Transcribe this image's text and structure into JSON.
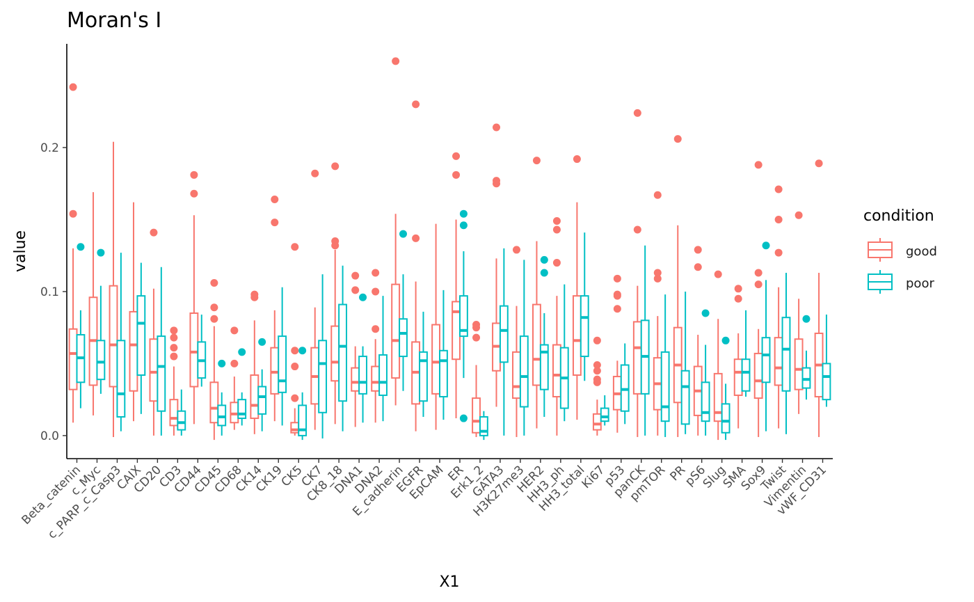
{
  "chart_data": {
    "type": "boxplot",
    "title": "Moran's I",
    "xlabel": "X1",
    "ylabel": "value",
    "ylim": [
      -0.016,
      0.272
    ],
    "yticks": [
      0.0,
      0.1,
      0.2
    ],
    "ytick_labels": [
      "0.0",
      "0.1",
      "0.2"
    ],
    "grid": false,
    "legend": {
      "title": "condition",
      "position": "right",
      "entries": [
        {
          "name": "good",
          "color": "#F8766D"
        },
        {
          "name": "poor",
          "color": "#00BFC4"
        }
      ]
    },
    "categories": [
      "Beta_catenin",
      "c_Myc",
      "c_PARP_c_Casp3",
      "CAIX",
      "CD20",
      "CD3",
      "CD44",
      "CD45",
      "CD68",
      "CK14",
      "CK19",
      "CK5",
      "CK7",
      "CK8_18",
      "DNA1",
      "DNA2",
      "E_cadherin",
      "EGFR",
      "EpCAM",
      "ER",
      "Erk1_2",
      "GATA3",
      "H3K27me3",
      "HER2",
      "HH3_ph",
      "HH3_total",
      "Ki67",
      "p53",
      "panCK",
      "pmTOR",
      "PR",
      "pS6",
      "Slug",
      "SMA",
      "Sox9",
      "Twist",
      "Vimentin",
      "vWF_CD31"
    ],
    "series": [
      {
        "name": "good",
        "boxes": [
          {
            "min": 0.009,
            "q1": 0.032,
            "median": 0.057,
            "q3": 0.074,
            "max": 0.13,
            "outliers": [
              0.242,
              0.154
            ]
          },
          {
            "min": 0.014,
            "q1": 0.035,
            "median": 0.066,
            "q3": 0.096,
            "max": 0.169,
            "outliers": []
          },
          {
            "min": -0.001,
            "q1": 0.034,
            "median": 0.063,
            "q3": 0.104,
            "max": 0.204,
            "outliers": []
          },
          {
            "min": 0.01,
            "q1": 0.031,
            "median": 0.063,
            "q3": 0.086,
            "max": 0.162,
            "outliers": []
          },
          {
            "min": 0.0,
            "q1": 0.024,
            "median": 0.044,
            "q3": 0.067,
            "max": 0.102,
            "outliers": [
              0.141
            ]
          },
          {
            "min": 0.0,
            "q1": 0.007,
            "median": 0.012,
            "q3": 0.025,
            "max": 0.048,
            "outliers": [
              0.073,
              0.068,
              0.061,
              0.055
            ]
          },
          {
            "min": 0.008,
            "q1": 0.034,
            "median": 0.058,
            "q3": 0.085,
            "max": 0.153,
            "outliers": [
              0.181,
              0.168
            ]
          },
          {
            "min": -0.003,
            "q1": 0.009,
            "median": 0.019,
            "q3": 0.037,
            "max": 0.076,
            "outliers": [
              0.106,
              0.089,
              0.081
            ]
          },
          {
            "min": 0.004,
            "q1": 0.009,
            "median": 0.015,
            "q3": 0.023,
            "max": 0.041,
            "outliers": [
              0.073,
              0.05
            ]
          },
          {
            "min": 0.001,
            "q1": 0.012,
            "median": 0.021,
            "q3": 0.042,
            "max": 0.08,
            "outliers": [
              0.098,
              0.096
            ]
          },
          {
            "min": 0.01,
            "q1": 0.029,
            "median": 0.044,
            "q3": 0.061,
            "max": 0.087,
            "outliers": [
              0.164,
              0.148
            ]
          },
          {
            "min": 0.0,
            "q1": 0.002,
            "median": 0.004,
            "q3": 0.009,
            "max": 0.019,
            "outliers": [
              0.131,
              0.059,
              0.048,
              0.026
            ]
          },
          {
            "min": 0.004,
            "q1": 0.022,
            "median": 0.041,
            "q3": 0.061,
            "max": 0.089,
            "outliers": [
              0.182
            ]
          },
          {
            "min": 0.008,
            "q1": 0.038,
            "median": 0.051,
            "q3": 0.076,
            "max": 0.129,
            "outliers": [
              0.187,
              0.135,
              0.132
            ]
          },
          {
            "min": 0.006,
            "q1": 0.031,
            "median": 0.037,
            "q3": 0.047,
            "max": 0.062,
            "outliers": [
              0.111,
              0.101
            ]
          },
          {
            "min": 0.009,
            "q1": 0.031,
            "median": 0.037,
            "q3": 0.048,
            "max": 0.067,
            "outliers": [
              0.113,
              0.1,
              0.074
            ]
          },
          {
            "min": 0.021,
            "q1": 0.04,
            "median": 0.066,
            "q3": 0.105,
            "max": 0.154,
            "outliers": [
              0.26
            ]
          },
          {
            "min": 0.003,
            "q1": 0.022,
            "median": 0.044,
            "q3": 0.065,
            "max": 0.107,
            "outliers": [
              0.23,
              0.137
            ]
          },
          {
            "min": 0.004,
            "q1": 0.029,
            "median": 0.051,
            "q3": 0.077,
            "max": 0.147,
            "outliers": []
          },
          {
            "min": 0.012,
            "q1": 0.053,
            "median": 0.086,
            "q3": 0.093,
            "max": 0.15,
            "outliers": [
              0.194,
              0.181
            ]
          },
          {
            "min": -0.001,
            "q1": 0.002,
            "median": 0.01,
            "q3": 0.026,
            "max": 0.049,
            "outliers": [
              0.077,
              0.075,
              0.068
            ]
          },
          {
            "min": 0.02,
            "q1": 0.045,
            "median": 0.062,
            "q3": 0.078,
            "max": 0.123,
            "outliers": [
              0.214,
              0.177,
              0.175
            ]
          },
          {
            "min": -0.001,
            "q1": 0.026,
            "median": 0.034,
            "q3": 0.058,
            "max": 0.09,
            "outliers": [
              0.129
            ]
          },
          {
            "min": 0.005,
            "q1": 0.035,
            "median": 0.053,
            "q3": 0.091,
            "max": 0.135,
            "outliers": [
              0.191
            ]
          },
          {
            "min": 0.0,
            "q1": 0.027,
            "median": 0.042,
            "q3": 0.063,
            "max": 0.097,
            "outliers": [
              0.149,
              0.143,
              0.12
            ]
          },
          {
            "min": 0.011,
            "q1": 0.042,
            "median": 0.066,
            "q3": 0.097,
            "max": 0.162,
            "outliers": [
              0.192
            ]
          },
          {
            "min": 0.0,
            "q1": 0.004,
            "median": 0.008,
            "q3": 0.015,
            "max": 0.025,
            "outliers": [
              0.066,
              0.049,
              0.045,
              0.039,
              0.037
            ]
          },
          {
            "min": 0.002,
            "q1": 0.018,
            "median": 0.029,
            "q3": 0.041,
            "max": 0.052,
            "outliers": [
              0.109,
              0.098,
              0.097,
              0.088
            ]
          },
          {
            "min": -0.001,
            "q1": 0.029,
            "median": 0.061,
            "q3": 0.079,
            "max": 0.104,
            "outliers": [
              0.224,
              0.143
            ]
          },
          {
            "min": 0.0,
            "q1": 0.018,
            "median": 0.036,
            "q3": 0.054,
            "max": 0.083,
            "outliers": [
              0.167,
              0.113,
              0.109
            ]
          },
          {
            "min": -0.001,
            "q1": 0.023,
            "median": 0.049,
            "q3": 0.075,
            "max": 0.146,
            "outliers": [
              0.206
            ]
          },
          {
            "min": 0.0,
            "q1": 0.014,
            "median": 0.031,
            "q3": 0.048,
            "max": 0.07,
            "outliers": [
              0.129,
              0.117
            ]
          },
          {
            "min": -0.003,
            "q1": 0.01,
            "median": 0.016,
            "q3": 0.043,
            "max": 0.081,
            "outliers": [
              0.112
            ]
          },
          {
            "min": 0.005,
            "q1": 0.028,
            "median": 0.044,
            "q3": 0.053,
            "max": 0.071,
            "outliers": [
              0.102,
              0.095
            ]
          },
          {
            "min": -0.001,
            "q1": 0.026,
            "median": 0.038,
            "q3": 0.057,
            "max": 0.074,
            "outliers": [
              0.188,
              0.113,
              0.105
            ]
          },
          {
            "min": 0.005,
            "q1": 0.035,
            "median": 0.047,
            "q3": 0.068,
            "max": 0.103,
            "outliers": [
              0.171,
              0.15,
              0.127
            ]
          },
          {
            "min": 0.015,
            "q1": 0.032,
            "median": 0.046,
            "q3": 0.067,
            "max": 0.095,
            "outliers": [
              0.153
            ]
          },
          {
            "min": -0.001,
            "q1": 0.027,
            "median": 0.049,
            "q3": 0.071,
            "max": 0.113,
            "outliers": [
              0.189
            ]
          }
        ]
      },
      {
        "name": "poor",
        "boxes": [
          {
            "min": 0.019,
            "q1": 0.037,
            "median": 0.054,
            "q3": 0.07,
            "max": 0.087,
            "outliers": [
              0.131
            ]
          },
          {
            "min": 0.029,
            "q1": 0.039,
            "median": 0.051,
            "q3": 0.066,
            "max": 0.104,
            "outliers": [
              0.127
            ]
          },
          {
            "min": 0.003,
            "q1": 0.013,
            "median": 0.029,
            "q3": 0.066,
            "max": 0.127,
            "outliers": []
          },
          {
            "min": 0.015,
            "q1": 0.042,
            "median": 0.078,
            "q3": 0.097,
            "max": 0.12,
            "outliers": []
          },
          {
            "min": 0.0,
            "q1": 0.017,
            "median": 0.048,
            "q3": 0.069,
            "max": 0.117,
            "outliers": []
          },
          {
            "min": 0.0,
            "q1": 0.004,
            "median": 0.009,
            "q3": 0.017,
            "max": 0.032,
            "outliers": []
          },
          {
            "min": 0.034,
            "q1": 0.04,
            "median": 0.052,
            "q3": 0.065,
            "max": 0.084,
            "outliers": []
          },
          {
            "min": 0.0,
            "q1": 0.007,
            "median": 0.013,
            "q3": 0.021,
            "max": 0.03,
            "outliers": [
              0.05
            ]
          },
          {
            "min": 0.007,
            "q1": 0.012,
            "median": 0.015,
            "q3": 0.025,
            "max": 0.03,
            "outliers": [
              0.058
            ]
          },
          {
            "min": 0.003,
            "q1": 0.015,
            "median": 0.027,
            "q3": 0.034,
            "max": 0.046,
            "outliers": [
              0.065
            ]
          },
          {
            "min": 0.007,
            "q1": 0.03,
            "median": 0.038,
            "q3": 0.069,
            "max": 0.103,
            "outliers": []
          },
          {
            "min": -0.003,
            "q1": 0.0,
            "median": 0.004,
            "q3": 0.021,
            "max": 0.03,
            "outliers": [
              0.059
            ]
          },
          {
            "min": -0.002,
            "q1": 0.016,
            "median": 0.05,
            "q3": 0.066,
            "max": 0.112,
            "outliers": []
          },
          {
            "min": 0.003,
            "q1": 0.024,
            "median": 0.062,
            "q3": 0.091,
            "max": 0.118,
            "outliers": []
          },
          {
            "min": 0.009,
            "q1": 0.029,
            "median": 0.037,
            "q3": 0.055,
            "max": 0.062,
            "outliers": [
              0.096
            ]
          },
          {
            "min": 0.01,
            "q1": 0.028,
            "median": 0.037,
            "q3": 0.056,
            "max": 0.097,
            "outliers": []
          },
          {
            "min": 0.031,
            "q1": 0.055,
            "median": 0.071,
            "q3": 0.081,
            "max": 0.112,
            "outliers": [
              0.14
            ]
          },
          {
            "min": 0.013,
            "q1": 0.024,
            "median": 0.052,
            "q3": 0.058,
            "max": 0.086,
            "outliers": []
          },
          {
            "min": 0.011,
            "q1": 0.027,
            "median": 0.052,
            "q3": 0.059,
            "max": 0.101,
            "outliers": []
          },
          {
            "min": 0.04,
            "q1": 0.069,
            "median": 0.073,
            "q3": 0.097,
            "max": 0.128,
            "outliers": [
              0.154,
              0.146,
              0.012
            ]
          },
          {
            "min": -0.003,
            "q1": 0.0,
            "median": 0.003,
            "q3": 0.013,
            "max": 0.017,
            "outliers": []
          },
          {
            "min": 0.0,
            "q1": 0.051,
            "median": 0.073,
            "q3": 0.09,
            "max": 0.13,
            "outliers": []
          },
          {
            "min": 0.0,
            "q1": 0.02,
            "median": 0.041,
            "q3": 0.069,
            "max": 0.122,
            "outliers": []
          },
          {
            "min": 0.013,
            "q1": 0.032,
            "median": 0.058,
            "q3": 0.063,
            "max": 0.085,
            "outliers": [
              0.122,
              0.113
            ]
          },
          {
            "min": 0.01,
            "q1": 0.019,
            "median": 0.04,
            "q3": 0.061,
            "max": 0.105,
            "outliers": []
          },
          {
            "min": 0.038,
            "q1": 0.055,
            "median": 0.082,
            "q3": 0.097,
            "max": 0.141,
            "outliers": []
          },
          {
            "min": 0.007,
            "q1": 0.01,
            "median": 0.013,
            "q3": 0.019,
            "max": 0.028,
            "outliers": []
          },
          {
            "min": 0.008,
            "q1": 0.017,
            "median": 0.032,
            "q3": 0.049,
            "max": 0.064,
            "outliers": []
          },
          {
            "min": 0.0,
            "q1": 0.029,
            "median": 0.055,
            "q3": 0.08,
            "max": 0.132,
            "outliers": []
          },
          {
            "min": -0.001,
            "q1": 0.01,
            "median": 0.02,
            "q3": 0.058,
            "max": 0.098,
            "outliers": []
          },
          {
            "min": 0.001,
            "q1": 0.008,
            "median": 0.034,
            "q3": 0.045,
            "max": 0.1,
            "outliers": []
          },
          {
            "min": 0.0,
            "q1": 0.01,
            "median": 0.016,
            "q3": 0.037,
            "max": 0.063,
            "outliers": [
              0.085
            ]
          },
          {
            "min": -0.003,
            "q1": 0.002,
            "median": 0.01,
            "q3": 0.022,
            "max": 0.036,
            "outliers": [
              0.066
            ]
          },
          {
            "min": 0.027,
            "q1": 0.031,
            "median": 0.044,
            "q3": 0.053,
            "max": 0.087,
            "outliers": []
          },
          {
            "min": 0.003,
            "q1": 0.037,
            "median": 0.056,
            "q3": 0.068,
            "max": 0.108,
            "outliers": [
              0.132
            ]
          },
          {
            "min": 0.001,
            "q1": 0.031,
            "median": 0.06,
            "q3": 0.082,
            "max": 0.113,
            "outliers": []
          },
          {
            "min": 0.025,
            "q1": 0.033,
            "median": 0.039,
            "q3": 0.047,
            "max": 0.059,
            "outliers": [
              0.081
            ]
          },
          {
            "min": 0.02,
            "q1": 0.025,
            "median": 0.041,
            "q3": 0.05,
            "max": 0.084,
            "outliers": []
          }
        ]
      }
    ]
  }
}
